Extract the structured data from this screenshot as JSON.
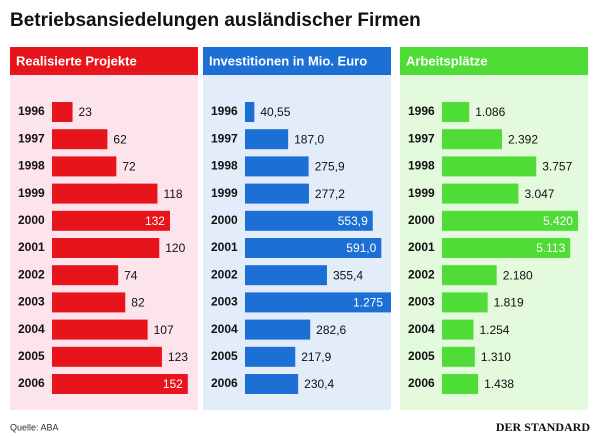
{
  "title": "Betriebsansiedelungen ausländischer Firmen",
  "source": "Quelle: ABA",
  "publisher": "DER STANDARD",
  "chart_data": [
    {
      "type": "bar",
      "title": "Realisierte Projekte",
      "categories": [
        "1996",
        "1997",
        "1998",
        "1999",
        "2000",
        "2001",
        "2002",
        "2003",
        "2004",
        "2005",
        "2006"
      ],
      "values": [
        23,
        62,
        72,
        118,
        132,
        120,
        74,
        82,
        107,
        123,
        152
      ],
      "color": "#e8141c",
      "xlim": [
        0,
        160
      ]
    },
    {
      "type": "bar",
      "title": "Investitionen in Mio. Euro",
      "categories": [
        "1996",
        "1997",
        "1998",
        "1999",
        "2000",
        "2001",
        "2002",
        "2003",
        "2004",
        "2005",
        "2006"
      ],
      "values": [
        40.55,
        187.0,
        275.9,
        277.2,
        553.9,
        591.0,
        355.4,
        1275,
        282.6,
        217.9,
        230.4
      ],
      "value_labels": [
        "40,55",
        "187,0",
        "275,9",
        "277,2",
        "553,9",
        "591,0",
        "355,4",
        "1.275",
        "282,6",
        "217,9",
        "230,4"
      ],
      "color": "#1c6fd4",
      "xlim": [
        0,
        620
      ]
    },
    {
      "type": "bar",
      "title": "Arbeitsplätze",
      "categories": [
        "1996",
        "1997",
        "1998",
        "1999",
        "2000",
        "2001",
        "2002",
        "2003",
        "2004",
        "2005",
        "2006"
      ],
      "values": [
        1086,
        2392,
        3757,
        3047,
        5420,
        5113,
        2180,
        1819,
        1254,
        1310,
        1438
      ],
      "value_labels": [
        "1.086",
        "2.392",
        "3.757",
        "3.047",
        "5.420",
        "5.113",
        "2.180",
        "1.819",
        "1.254",
        "1.310",
        "1.438"
      ],
      "color": "#4fdc36",
      "xlim": [
        0,
        5700
      ]
    }
  ]
}
